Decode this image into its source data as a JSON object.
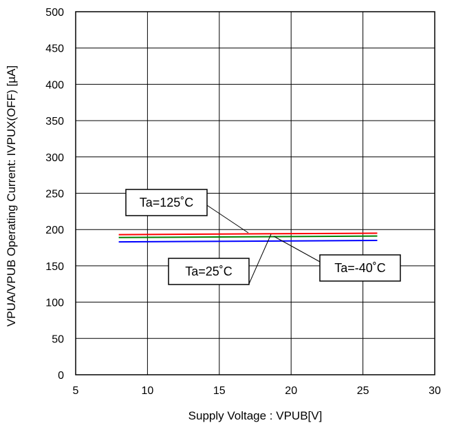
{
  "chart_data": {
    "type": "line",
    "xlabel": "Supply Voltage : VPUB[V]",
    "ylabel": "VPUA/VPUB Operating Current: IVPUX(OFF) [µA]",
    "xlim": [
      5,
      30
    ],
    "ylim": [
      0,
      500
    ],
    "xticks": [
      "5",
      "10",
      "15",
      "20",
      "25",
      "30"
    ],
    "yticks": [
      "0",
      "50",
      "100",
      "150",
      "200",
      "250",
      "300",
      "350",
      "400",
      "450",
      "500"
    ],
    "grid": true,
    "series": [
      {
        "name": "Ta=125˚C",
        "color": "#ff0000",
        "x": [
          8,
          26
        ],
        "y": [
          193,
          195
        ]
      },
      {
        "name": "Ta=25˚C",
        "color": "#008000",
        "x": [
          8,
          26
        ],
        "y": [
          189,
          191
        ]
      },
      {
        "name": "Ta=-40˚C",
        "color": "#0000ff",
        "x": [
          8,
          26
        ],
        "y": [
          183,
          185
        ]
      }
    ]
  }
}
